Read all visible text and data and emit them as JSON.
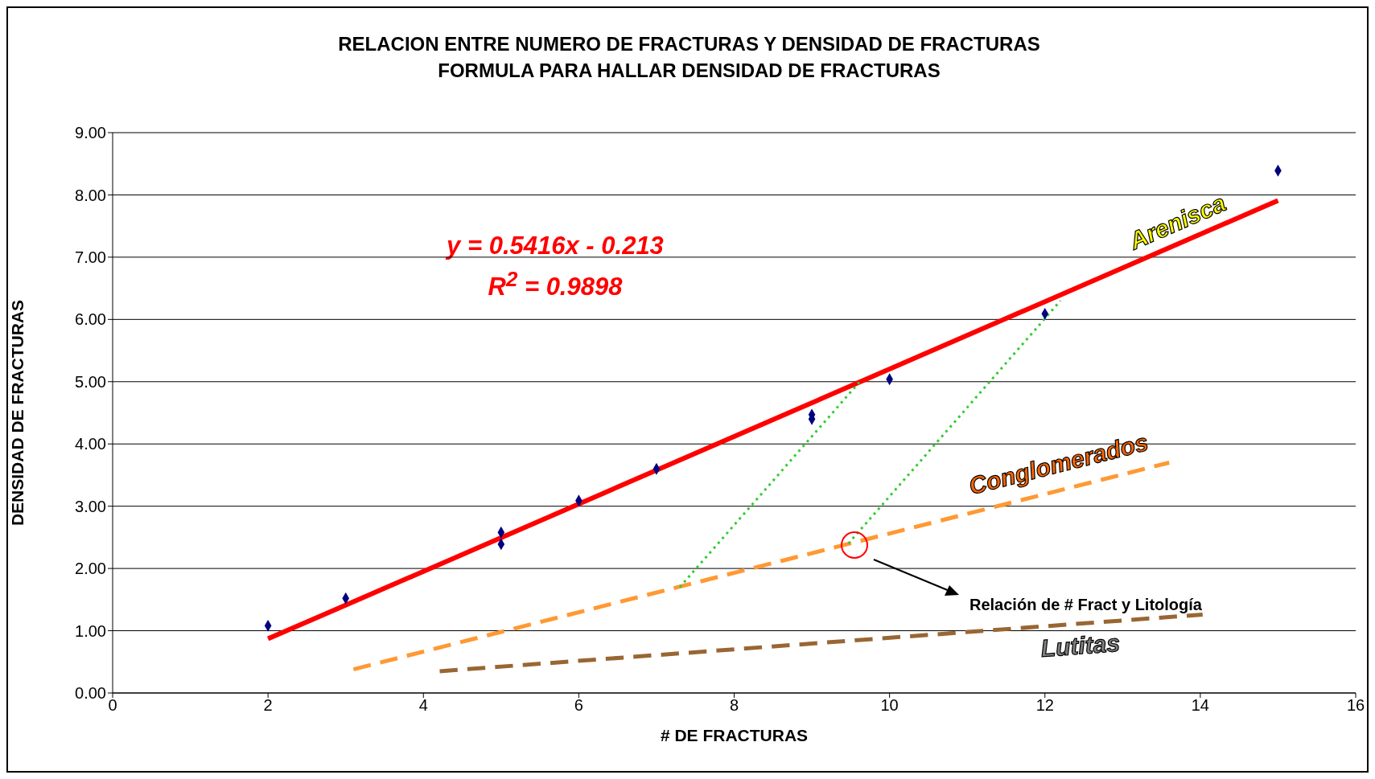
{
  "chart_data": {
    "type": "scatter",
    "title": "RELACION ENTRE NUMERO DE FRACTURAS Y DENSIDAD DE FRACTURAS\nFORMULA PARA HALLAR DENSIDAD DE FRACTURAS",
    "xlabel": "# DE FRACTURAS",
    "ylabel": "DENSIDAD DE FRACTURAS",
    "xlim": [
      0,
      16
    ],
    "xticks": [
      0,
      2,
      4,
      6,
      8,
      10,
      12,
      14,
      16
    ],
    "ylim": [
      0,
      9
    ],
    "yticks": [
      {
        "value": 0,
        "label": "0.00"
      },
      {
        "value": 1,
        "label": "1.00"
      },
      {
        "value": 2,
        "label": "2.00"
      },
      {
        "value": 3,
        "label": "3.00"
      },
      {
        "value": 4,
        "label": "4.00"
      },
      {
        "value": 5,
        "label": "5.00"
      },
      {
        "value": 6,
        "label": "6.00"
      },
      {
        "value": 7,
        "label": "7.00"
      },
      {
        "value": 8,
        "label": "8.00"
      },
      {
        "value": 9,
        "label": "9.00"
      }
    ],
    "grid": "y",
    "series": [
      {
        "color": "#000080",
        "marker": "diamond",
        "x": [
          2,
          3,
          5,
          5,
          6,
          7,
          9,
          9,
          10,
          12,
          15
        ],
        "values": [
          1.08,
          1.52,
          2.58,
          2.39,
          3.09,
          3.6,
          4.47,
          4.4,
          5.04,
          6.09,
          8.39
        ]
      },
      {
        "type": "line",
        "name": "Arenisca",
        "color": "#ff0000",
        "line_style": "solid",
        "marker": "none",
        "x": [
          2,
          15
        ],
        "values": [
          0.87,
          7.91
        ]
      },
      {
        "type": "line",
        "name": "Conglomerados",
        "color": "#ff9933",
        "line_style": "dashed",
        "marker": "none",
        "x": [
          3.1,
          13.6
        ],
        "values": [
          0.38,
          3.7
        ]
      },
      {
        "type": "line",
        "name": "Lutitas",
        "color": "#996633",
        "line_style": "dashed",
        "marker": "none",
        "x": [
          4.21,
          14.03
        ],
        "values": [
          0.35,
          1.26
        ]
      },
      {
        "type": "line",
        "color": "#33cc33",
        "line_style": "dotted",
        "marker": "none",
        "x": [
          7.3,
          9.61
        ],
        "values": [
          1.7,
          4.99
        ]
      },
      {
        "type": "line",
        "color": "#33cc33",
        "line_style": "dotted",
        "marker": "none",
        "x": [
          9.47,
          12.2
        ],
        "values": [
          2.4,
          6.3
        ]
      }
    ],
    "annotations": [
      "y = 0.5416x - 0.213",
      "R$^{2}$ = 0.9898",
      "Relación de # Fract y Litología"
    ]
  }
}
